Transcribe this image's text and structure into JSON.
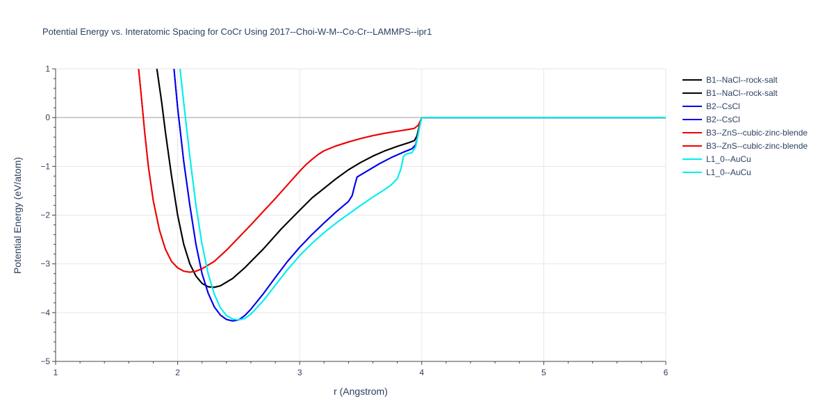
{
  "chart_data": {
    "type": "line",
    "title": "Potential Energy vs. Interatomic Spacing for CoCr Using 2017--Choi-W-M--Co-Cr--LAMMPS--ipr1",
    "xlabel": "r (Angstrom)",
    "ylabel": "Potential Energy (eV/atom)",
    "xlim": [
      1,
      6
    ],
    "ylim": [
      -5,
      1
    ],
    "xticks": [
      1,
      2,
      3,
      4,
      5,
      6
    ],
    "yticks": [
      -5,
      -4,
      -3,
      -2,
      -1,
      0,
      1
    ],
    "xtick_labels": [
      "1",
      "2",
      "3",
      "4",
      "5",
      "6"
    ],
    "ytick_labels": [
      "−5",
      "−4",
      "−3",
      "−2",
      "−1",
      "0",
      "1"
    ],
    "grid": true,
    "legend_position": "top-right",
    "series": [
      {
        "name": "B1--NaCl--rock-salt",
        "color": "#000000",
        "points": [
          [
            1.83,
            1.0
          ],
          [
            1.87,
            0.3
          ],
          [
            1.9,
            -0.3
          ],
          [
            1.95,
            -1.2
          ],
          [
            2.0,
            -2.0
          ],
          [
            2.05,
            -2.6
          ],
          [
            2.1,
            -3.0
          ],
          [
            2.15,
            -3.25
          ],
          [
            2.2,
            -3.4
          ],
          [
            2.25,
            -3.47
          ],
          [
            2.3,
            -3.48
          ],
          [
            2.35,
            -3.45
          ],
          [
            2.45,
            -3.3
          ],
          [
            2.55,
            -3.08
          ],
          [
            2.7,
            -2.7
          ],
          [
            2.85,
            -2.28
          ],
          [
            3.0,
            -1.9
          ],
          [
            3.1,
            -1.65
          ],
          [
            3.2,
            -1.45
          ],
          [
            3.3,
            -1.25
          ],
          [
            3.4,
            -1.07
          ],
          [
            3.5,
            -0.92
          ],
          [
            3.6,
            -0.79
          ],
          [
            3.7,
            -0.68
          ],
          [
            3.8,
            -0.59
          ],
          [
            3.9,
            -0.51
          ],
          [
            3.94,
            -0.47
          ],
          [
            3.96,
            -0.38
          ],
          [
            3.98,
            -0.18
          ],
          [
            4.0,
            0.0
          ],
          [
            6.0,
            0.0
          ]
        ]
      },
      {
        "name": "B1--NaCl--rock-salt",
        "color": "#000000",
        "points": [
          [
            1.83,
            1.0
          ],
          [
            1.87,
            0.3
          ],
          [
            1.9,
            -0.3
          ],
          [
            1.95,
            -1.2
          ],
          [
            2.0,
            -2.0
          ],
          [
            2.05,
            -2.6
          ],
          [
            2.1,
            -3.0
          ],
          [
            2.15,
            -3.25
          ],
          [
            2.2,
            -3.4
          ],
          [
            2.25,
            -3.47
          ],
          [
            2.3,
            -3.48
          ],
          [
            2.35,
            -3.45
          ],
          [
            2.45,
            -3.3
          ],
          [
            2.55,
            -3.08
          ],
          [
            2.7,
            -2.7
          ],
          [
            2.85,
            -2.28
          ],
          [
            3.0,
            -1.9
          ],
          [
            3.1,
            -1.65
          ],
          [
            3.2,
            -1.45
          ],
          [
            3.3,
            -1.25
          ],
          [
            3.4,
            -1.07
          ],
          [
            3.5,
            -0.92
          ],
          [
            3.6,
            -0.79
          ],
          [
            3.7,
            -0.68
          ],
          [
            3.8,
            -0.59
          ],
          [
            3.9,
            -0.51
          ],
          [
            3.94,
            -0.47
          ],
          [
            3.96,
            -0.38
          ],
          [
            3.98,
            -0.18
          ],
          [
            4.0,
            0.0
          ],
          [
            6.0,
            0.0
          ]
        ]
      },
      {
        "name": "B2--CsCl",
        "color": "#0000ee",
        "points": [
          [
            1.97,
            1.0
          ],
          [
            2.0,
            0.2
          ],
          [
            2.05,
            -0.9
          ],
          [
            2.1,
            -1.8
          ],
          [
            2.15,
            -2.6
          ],
          [
            2.2,
            -3.2
          ],
          [
            2.25,
            -3.6
          ],
          [
            2.3,
            -3.88
          ],
          [
            2.35,
            -4.05
          ],
          [
            2.4,
            -4.14
          ],
          [
            2.45,
            -4.17
          ],
          [
            2.5,
            -4.15
          ],
          [
            2.55,
            -4.06
          ],
          [
            2.6,
            -3.93
          ],
          [
            2.7,
            -3.62
          ],
          [
            2.8,
            -3.28
          ],
          [
            2.9,
            -2.95
          ],
          [
            3.0,
            -2.66
          ],
          [
            3.1,
            -2.4
          ],
          [
            3.2,
            -2.16
          ],
          [
            3.3,
            -1.93
          ],
          [
            3.4,
            -1.72
          ],
          [
            3.43,
            -1.6
          ],
          [
            3.45,
            -1.4
          ],
          [
            3.47,
            -1.22
          ],
          [
            3.55,
            -1.1
          ],
          [
            3.65,
            -0.95
          ],
          [
            3.75,
            -0.82
          ],
          [
            3.85,
            -0.71
          ],
          [
            3.92,
            -0.64
          ],
          [
            3.95,
            -0.56
          ],
          [
            3.97,
            -0.35
          ],
          [
            3.99,
            -0.1
          ],
          [
            4.0,
            0.0
          ],
          [
            6.0,
            0.0
          ]
        ]
      },
      {
        "name": "B2--CsCl",
        "color": "#0000ee",
        "points": [
          [
            1.97,
            1.0
          ],
          [
            2.0,
            0.2
          ],
          [
            2.05,
            -0.9
          ],
          [
            2.1,
            -1.8
          ],
          [
            2.15,
            -2.6
          ],
          [
            2.2,
            -3.2
          ],
          [
            2.25,
            -3.6
          ],
          [
            2.3,
            -3.88
          ],
          [
            2.35,
            -4.05
          ],
          [
            2.4,
            -4.14
          ],
          [
            2.45,
            -4.17
          ],
          [
            2.5,
            -4.15
          ],
          [
            2.55,
            -4.06
          ],
          [
            2.6,
            -3.93
          ],
          [
            2.7,
            -3.62
          ],
          [
            2.8,
            -3.28
          ],
          [
            2.9,
            -2.95
          ],
          [
            3.0,
            -2.66
          ],
          [
            3.1,
            -2.4
          ],
          [
            3.2,
            -2.16
          ],
          [
            3.3,
            -1.93
          ],
          [
            3.4,
            -1.72
          ],
          [
            3.43,
            -1.6
          ],
          [
            3.45,
            -1.4
          ],
          [
            3.47,
            -1.22
          ],
          [
            3.55,
            -1.1
          ],
          [
            3.65,
            -0.95
          ],
          [
            3.75,
            -0.82
          ],
          [
            3.85,
            -0.71
          ],
          [
            3.92,
            -0.64
          ],
          [
            3.95,
            -0.56
          ],
          [
            3.97,
            -0.35
          ],
          [
            3.99,
            -0.1
          ],
          [
            4.0,
            0.0
          ],
          [
            6.0,
            0.0
          ]
        ]
      },
      {
        "name": "B3--ZnS--cubic-zinc-blende",
        "color": "#ee0000",
        "points": [
          [
            1.68,
            1.0
          ],
          [
            1.7,
            0.5
          ],
          [
            1.73,
            -0.3
          ],
          [
            1.76,
            -1.0
          ],
          [
            1.8,
            -1.7
          ],
          [
            1.85,
            -2.3
          ],
          [
            1.9,
            -2.7
          ],
          [
            1.95,
            -2.95
          ],
          [
            2.0,
            -3.08
          ],
          [
            2.05,
            -3.15
          ],
          [
            2.1,
            -3.17
          ],
          [
            2.15,
            -3.15
          ],
          [
            2.2,
            -3.1
          ],
          [
            2.3,
            -2.95
          ],
          [
            2.4,
            -2.72
          ],
          [
            2.5,
            -2.46
          ],
          [
            2.6,
            -2.2
          ],
          [
            2.7,
            -1.93
          ],
          [
            2.8,
            -1.66
          ],
          [
            2.9,
            -1.38
          ],
          [
            3.0,
            -1.1
          ],
          [
            3.05,
            -0.97
          ],
          [
            3.1,
            -0.86
          ],
          [
            3.15,
            -0.76
          ],
          [
            3.2,
            -0.68
          ],
          [
            3.3,
            -0.58
          ],
          [
            3.4,
            -0.5
          ],
          [
            3.5,
            -0.43
          ],
          [
            3.6,
            -0.37
          ],
          [
            3.7,
            -0.32
          ],
          [
            3.8,
            -0.28
          ],
          [
            3.9,
            -0.24
          ],
          [
            3.94,
            -0.22
          ],
          [
            3.97,
            -0.16
          ],
          [
            3.99,
            -0.06
          ],
          [
            4.0,
            0.0
          ],
          [
            6.0,
            0.0
          ]
        ]
      },
      {
        "name": "B3--ZnS--cubic-zinc-blende",
        "color": "#ee0000",
        "points": [
          [
            1.68,
            1.0
          ],
          [
            1.7,
            0.5
          ],
          [
            1.73,
            -0.3
          ],
          [
            1.76,
            -1.0
          ],
          [
            1.8,
            -1.7
          ],
          [
            1.85,
            -2.3
          ],
          [
            1.9,
            -2.7
          ],
          [
            1.95,
            -2.95
          ],
          [
            2.0,
            -3.08
          ],
          [
            2.05,
            -3.15
          ],
          [
            2.1,
            -3.17
          ],
          [
            2.15,
            -3.15
          ],
          [
            2.2,
            -3.1
          ],
          [
            2.3,
            -2.95
          ],
          [
            2.4,
            -2.72
          ],
          [
            2.5,
            -2.46
          ],
          [
            2.6,
            -2.2
          ],
          [
            2.7,
            -1.93
          ],
          [
            2.8,
            -1.66
          ],
          [
            2.9,
            -1.38
          ],
          [
            3.0,
            -1.1
          ],
          [
            3.05,
            -0.97
          ],
          [
            3.1,
            -0.86
          ],
          [
            3.15,
            -0.76
          ],
          [
            3.2,
            -0.68
          ],
          [
            3.3,
            -0.58
          ],
          [
            3.4,
            -0.5
          ],
          [
            3.5,
            -0.43
          ],
          [
            3.6,
            -0.37
          ],
          [
            3.7,
            -0.32
          ],
          [
            3.8,
            -0.28
          ],
          [
            3.9,
            -0.24
          ],
          [
            3.94,
            -0.22
          ],
          [
            3.97,
            -0.16
          ],
          [
            3.99,
            -0.06
          ],
          [
            4.0,
            0.0
          ],
          [
            6.0,
            0.0
          ]
        ]
      },
      {
        "name": "L1_0--AuCu",
        "color": "#00eeee",
        "points": [
          [
            2.02,
            1.0
          ],
          [
            2.05,
            0.3
          ],
          [
            2.1,
            -0.8
          ],
          [
            2.15,
            -1.8
          ],
          [
            2.2,
            -2.6
          ],
          [
            2.25,
            -3.2
          ],
          [
            2.3,
            -3.62
          ],
          [
            2.35,
            -3.9
          ],
          [
            2.4,
            -4.06
          ],
          [
            2.45,
            -4.13
          ],
          [
            2.5,
            -4.15
          ],
          [
            2.55,
            -4.12
          ],
          [
            2.6,
            -4.03
          ],
          [
            2.7,
            -3.76
          ],
          [
            2.8,
            -3.44
          ],
          [
            2.9,
            -3.12
          ],
          [
            3.0,
            -2.83
          ],
          [
            3.1,
            -2.58
          ],
          [
            3.2,
            -2.36
          ],
          [
            3.3,
            -2.16
          ],
          [
            3.4,
            -1.98
          ],
          [
            3.5,
            -1.8
          ],
          [
            3.6,
            -1.63
          ],
          [
            3.7,
            -1.47
          ],
          [
            3.75,
            -1.38
          ],
          [
            3.8,
            -1.25
          ],
          [
            3.83,
            -1.05
          ],
          [
            3.85,
            -0.8
          ],
          [
            3.87,
            -0.75
          ],
          [
            3.92,
            -0.72
          ],
          [
            3.95,
            -0.6
          ],
          [
            3.97,
            -0.35
          ],
          [
            3.99,
            -0.1
          ],
          [
            4.0,
            0.0
          ],
          [
            6.0,
            0.0
          ]
        ]
      },
      {
        "name": "L1_0--AuCu",
        "color": "#00eeee",
        "points": [
          [
            2.02,
            1.0
          ],
          [
            2.05,
            0.3
          ],
          [
            2.1,
            -0.8
          ],
          [
            2.15,
            -1.8
          ],
          [
            2.2,
            -2.6
          ],
          [
            2.25,
            -3.2
          ],
          [
            2.3,
            -3.62
          ],
          [
            2.35,
            -3.9
          ],
          [
            2.4,
            -4.06
          ],
          [
            2.45,
            -4.13
          ],
          [
            2.5,
            -4.15
          ],
          [
            2.55,
            -4.12
          ],
          [
            2.6,
            -4.03
          ],
          [
            2.7,
            -3.76
          ],
          [
            2.8,
            -3.44
          ],
          [
            2.9,
            -3.12
          ],
          [
            3.0,
            -2.83
          ],
          [
            3.1,
            -2.58
          ],
          [
            3.2,
            -2.36
          ],
          [
            3.3,
            -2.16
          ],
          [
            3.4,
            -1.98
          ],
          [
            3.5,
            -1.8
          ],
          [
            3.6,
            -1.63
          ],
          [
            3.7,
            -1.47
          ],
          [
            3.75,
            -1.38
          ],
          [
            3.8,
            -1.25
          ],
          [
            3.83,
            -1.05
          ],
          [
            3.85,
            -0.8
          ],
          [
            3.87,
            -0.75
          ],
          [
            3.92,
            -0.72
          ],
          [
            3.95,
            -0.6
          ],
          [
            3.97,
            -0.35
          ],
          [
            3.99,
            -0.1
          ],
          [
            4.0,
            0.0
          ],
          [
            6.0,
            0.0
          ]
        ]
      }
    ]
  }
}
